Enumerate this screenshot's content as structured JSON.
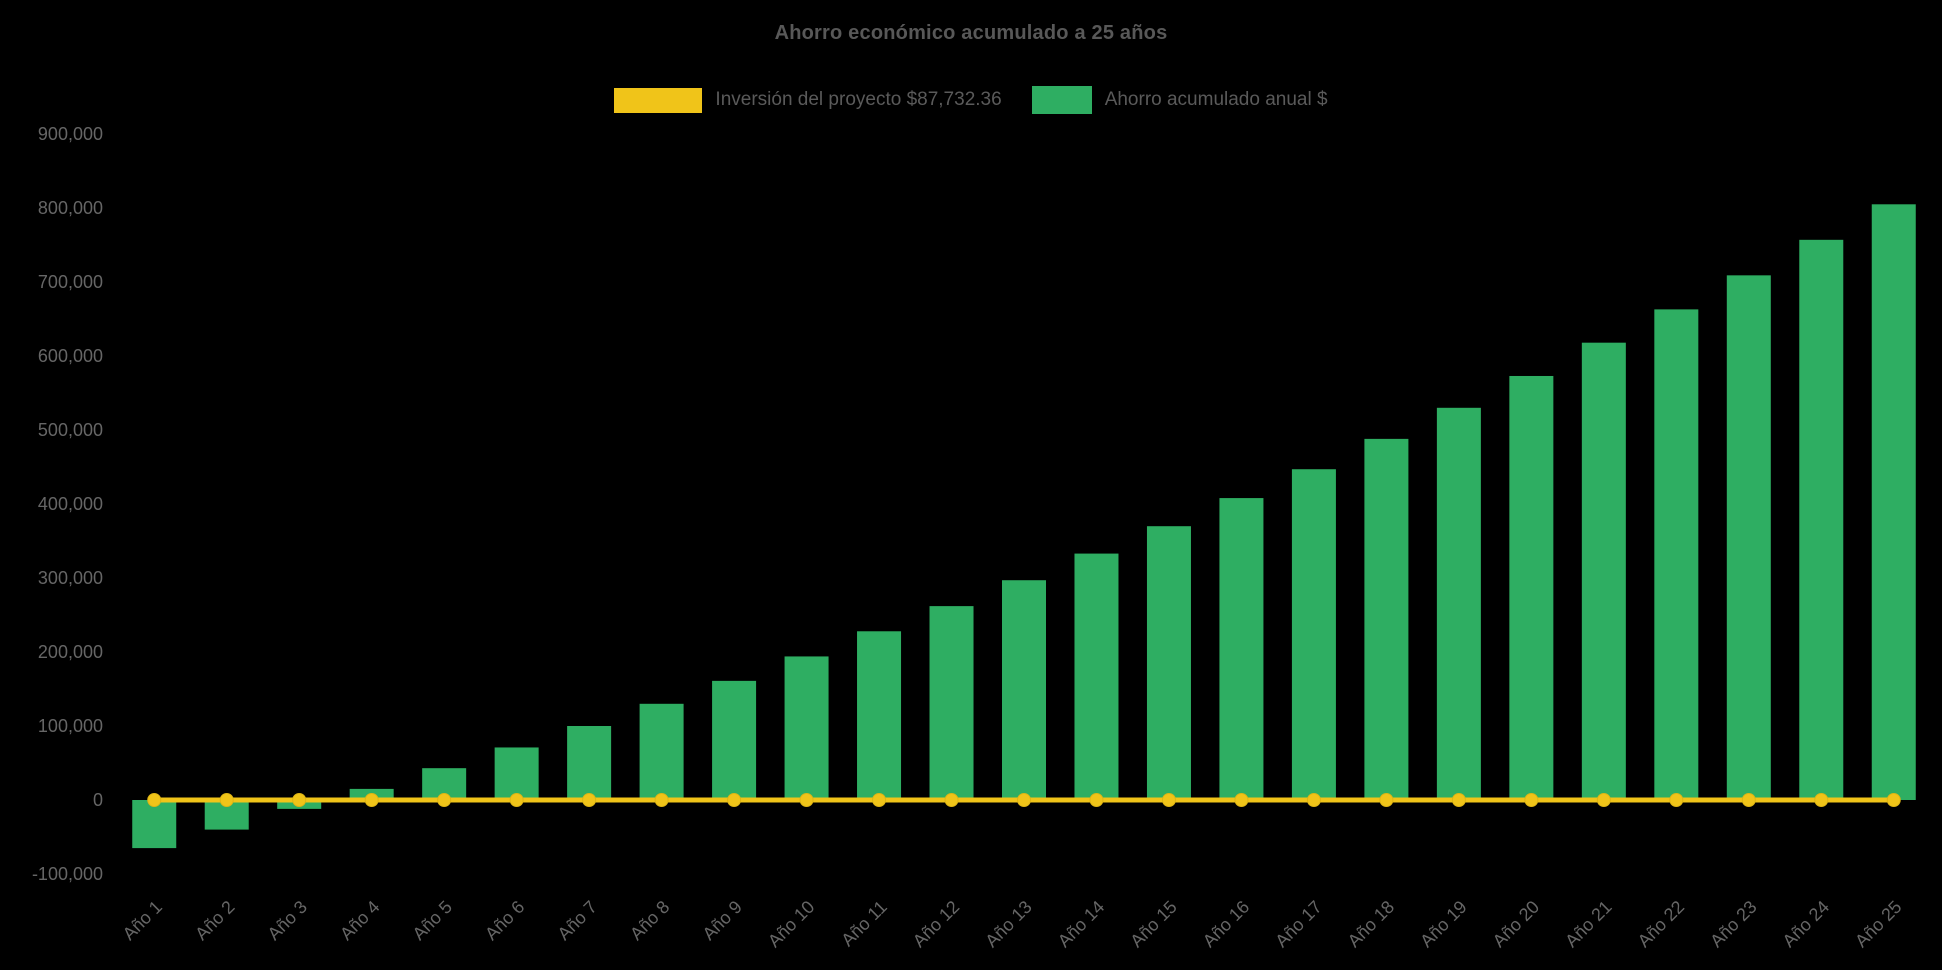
{
  "title": "Ahorro económico acumulado a 25 años",
  "colors": {
    "background": "#000000",
    "bar": "#2eae62",
    "line": "#f0c419",
    "title_text": "#585858",
    "axis_text": "#666666",
    "legend_text": "#5a5a5a"
  },
  "legend": {
    "items": [
      {
        "label": "Inversión del proyecto $87,732.36",
        "color": "#f0c419",
        "swatch": "line"
      },
      {
        "label": "Ahorro acumulado anual $",
        "color": "#2eae62",
        "swatch": "bar"
      }
    ]
  },
  "chart_data": {
    "type": "bar",
    "title": "Ahorro económico acumulado a 25 años",
    "xlabel": "",
    "ylabel": "",
    "ylim": [
      -100000,
      900000
    ],
    "ytick_step": 100000,
    "grid": false,
    "legend_position": "top",
    "categories": [
      "Año 1",
      "Año 2",
      "Año 3",
      "Año 4",
      "Año 5",
      "Año 6",
      "Año 7",
      "Año 8",
      "Año 9",
      "Año 10",
      "Año 11",
      "Año 12",
      "Año 13",
      "Año 14",
      "Año 15",
      "Año 16",
      "Año 17",
      "Año 18",
      "Año 19",
      "Año 20",
      "Año 21",
      "Año 22",
      "Año 23",
      "Año 24",
      "Año 25"
    ],
    "series": [
      {
        "name": "Ahorro acumulado anual $",
        "type": "bar",
        "color": "#2eae62",
        "values": [
          -65000,
          -40000,
          -12000,
          15000,
          43000,
          71000,
          100000,
          130000,
          161000,
          194000,
          228000,
          262000,
          297000,
          333000,
          370000,
          408000,
          447000,
          488000,
          530000,
          573000,
          618000,
          663000,
          709000,
          757000,
          805000
        ]
      },
      {
        "name": "Inversión del proyecto $87,732.36",
        "type": "line",
        "color": "#f0c419",
        "marker": "circle",
        "values": [
          0,
          0,
          0,
          0,
          0,
          0,
          0,
          0,
          0,
          0,
          0,
          0,
          0,
          0,
          0,
          0,
          0,
          0,
          0,
          0,
          0,
          0,
          0,
          0,
          0
        ]
      }
    ]
  }
}
